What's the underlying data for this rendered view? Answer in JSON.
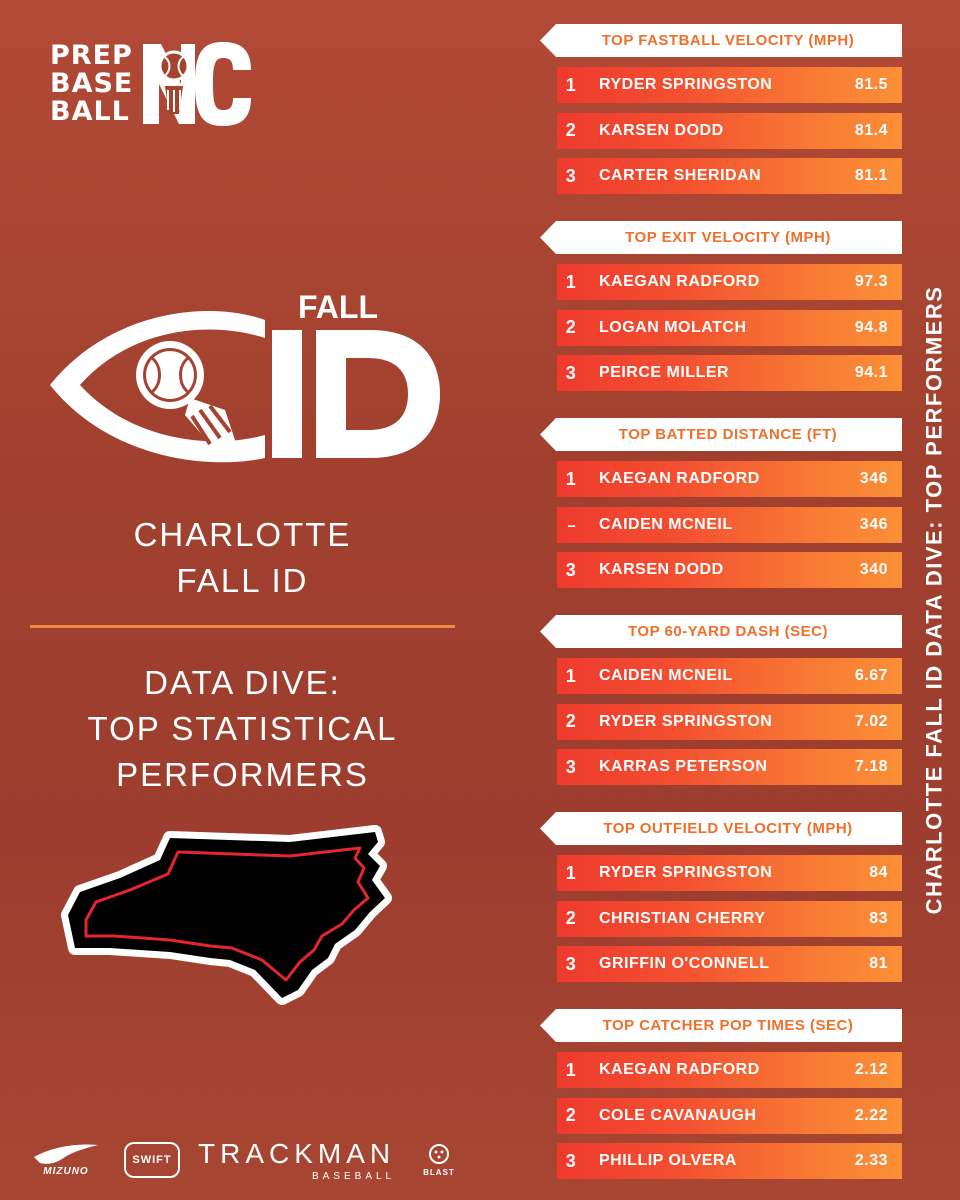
{
  "logo": {
    "line1": "PREP",
    "line2": "BASE",
    "line3": "BALL"
  },
  "event_mark": {
    "word": "FALL",
    "word2": "ID"
  },
  "city": {
    "line1": "CHARLOTTE",
    "line2": "FALL ID"
  },
  "headline": {
    "line1": "DATA DIVE:",
    "line2": "TOP STATISTICAL",
    "line3": "PERFORMERS"
  },
  "side_title": "CHARLOTTE FALL ID DATA DIVE: TOP PERFORMERS",
  "sponsors": {
    "mizuno": "MIZUNO",
    "swift": "SWIFT",
    "trackman": "TRACKMAN",
    "trackman_sub": "BASEBALL",
    "blast": "BLAST"
  },
  "categories": [
    {
      "title": "TOP FASTBALL VELOCITY (MPH)",
      "rows": [
        {
          "rank": "1",
          "player": "RYDER SPRINGSTON",
          "value": "81.5"
        },
        {
          "rank": "2",
          "player": "KARSEN DODD",
          "value": "81.4"
        },
        {
          "rank": "3",
          "player": "CARTER SHERIDAN",
          "value": "81.1"
        }
      ]
    },
    {
      "title": "TOP EXIT VELOCITY (MPH)",
      "rows": [
        {
          "rank": "1",
          "player": "KAEGAN RADFORD",
          "value": "97.3"
        },
        {
          "rank": "2",
          "player": "LOGAN MOLATCH",
          "value": "94.8"
        },
        {
          "rank": "3",
          "player": "PEIRCE MILLER",
          "value": "94.1"
        }
      ]
    },
    {
      "title": "TOP BATTED DISTANCE (FT)",
      "rows": [
        {
          "rank": "1",
          "player": "KAEGAN RADFORD",
          "value": "346"
        },
        {
          "rank": "--",
          "player": "CAIDEN MCNEIL",
          "value": "346"
        },
        {
          "rank": "3",
          "player": "KARSEN DODD",
          "value": "340"
        }
      ]
    },
    {
      "title": "TOP 60-YARD DASH (SEC)",
      "rows": [
        {
          "rank": "1",
          "player": "CAIDEN MCNEIL",
          "value": "6.67"
        },
        {
          "rank": "2",
          "player": "RYDER SPRINGSTON",
          "value": "7.02"
        },
        {
          "rank": "3",
          "player": "KARRAS PETERSON",
          "value": "7.18"
        }
      ]
    },
    {
      "title": "TOP OUTFIELD VELOCITY (MPH)",
      "rows": [
        {
          "rank": "1",
          "player": "RYDER SPRINGSTON",
          "value": "84"
        },
        {
          "rank": "2",
          "player": "CHRISTIAN CHERRY",
          "value": "83"
        },
        {
          "rank": "3",
          "player": "GRIFFIN O'CONNELL",
          "value": "81"
        }
      ]
    },
    {
      "title": "TOP CATCHER POP TIMES (SEC)",
      "rows": [
        {
          "rank": "1",
          "player": "KAEGAN RADFORD",
          "value": "2.12"
        },
        {
          "rank": "2",
          "player": "COLE CAVANAUGH",
          "value": "2.22"
        },
        {
          "rank": "3",
          "player": "PHILLIP OLVERA",
          "value": "2.33"
        }
      ]
    }
  ],
  "colors": {
    "accent_orange": "#f06f2a",
    "row_start": "#ef3a2e",
    "row_end": "#fb8f37",
    "divider": "#f08a3c",
    "map_fill": "#000000",
    "map_outline": "#e3262f"
  },
  "icons": [
    "baseball-icon",
    "eye-icon",
    "north-carolina-map-icon",
    "mizuno-runbird-icon",
    "blast-icon"
  ]
}
